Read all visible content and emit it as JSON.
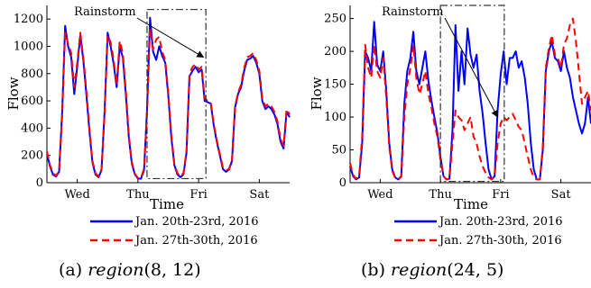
{
  "colors": {
    "series1": "#0000ff",
    "series2": "#ff0000",
    "axis": "#000000",
    "box": "#333333"
  },
  "chart_data": [
    {
      "type": "line",
      "caption_prefix": "(a) ",
      "caption_func": "region",
      "caption_args": "(8, 12)",
      "xlabel": "Time",
      "ylabel": "Flow",
      "xlim": [
        0,
        4
      ],
      "ylim": [
        0,
        1300
      ],
      "yticks": [
        0,
        200,
        400,
        600,
        800,
        1000,
        1200
      ],
      "xtick_labels": [
        "Wed",
        "Thu",
        "Fri",
        "Sat"
      ],
      "xtick_positions": [
        0.5,
        1.5,
        2.5,
        3.5
      ],
      "annotation": {
        "text": "Rainstorm",
        "box_x": [
          1.65,
          2.62
        ],
        "box_y": [
          30,
          1270
        ],
        "arrow_to": [
          2.58,
          920
        ]
      },
      "series": [
        {
          "name": "Jan. 20th-23rd, 2016",
          "style": "solid",
          "x": [
            0,
            0.05,
            0.1,
            0.15,
            0.2,
            0.25,
            0.3,
            0.35,
            0.4,
            0.45,
            0.5,
            0.55,
            0.6,
            0.65,
            0.7,
            0.75,
            0.8,
            0.85,
            0.9,
            0.95,
            1,
            1.05,
            1.1,
            1.15,
            1.2,
            1.25,
            1.3,
            1.35,
            1.4,
            1.45,
            1.5,
            1.55,
            1.6,
            1.65,
            1.7,
            1.75,
            1.8,
            1.85,
            1.9,
            1.95,
            2,
            2.05,
            2.1,
            2.15,
            2.2,
            2.25,
            2.3,
            2.35,
            2.4,
            2.45,
            2.5,
            2.55,
            2.6,
            2.65,
            2.7,
            2.75,
            2.8,
            2.85,
            2.9,
            2.95,
            3,
            3.05,
            3.1,
            3.15,
            3.2,
            3.25,
            3.3,
            3.35,
            3.4,
            3.45,
            3.5,
            3.55,
            3.6,
            3.65,
            3.7,
            3.75,
            3.8,
            3.85,
            3.9,
            3.95,
            4
          ],
          "y": [
            210,
            120,
            60,
            45,
            80,
            500,
            1150,
            1000,
            920,
            650,
            850,
            1080,
            900,
            650,
            380,
            150,
            60,
            40,
            90,
            520,
            1100,
            1000,
            870,
            700,
            1000,
            920,
            650,
            330,
            140,
            60,
            30,
            30,
            90,
            540,
            1210,
            960,
            900,
            1000,
            930,
            880,
            640,
            330,
            130,
            60,
            40,
            60,
            220,
            780,
            820,
            850,
            810,
            830,
            600,
            590,
            580,
            420,
            300,
            200,
            100,
            80,
            95,
            160,
            550,
            650,
            700,
            820,
            900,
            910,
            930,
            880,
            800,
            600,
            540,
            560,
            540,
            500,
            430,
            300,
            250,
            520,
            480
          ]
        },
        {
          "name": "Jan. 27th-30th, 2016",
          "style": "dashed",
          "x": [
            0,
            0.05,
            0.1,
            0.15,
            0.2,
            0.25,
            0.3,
            0.35,
            0.4,
            0.45,
            0.5,
            0.55,
            0.6,
            0.65,
            0.7,
            0.75,
            0.8,
            0.85,
            0.9,
            0.95,
            1,
            1.05,
            1.1,
            1.15,
            1.2,
            1.25,
            1.3,
            1.35,
            1.4,
            1.45,
            1.5,
            1.55,
            1.6,
            1.65,
            1.7,
            1.75,
            1.8,
            1.85,
            1.9,
            1.95,
            2,
            2.05,
            2.1,
            2.15,
            2.2,
            2.25,
            2.3,
            2.35,
            2.4,
            2.45,
            2.5,
            2.55,
            2.6,
            2.65,
            2.7,
            2.75,
            2.8,
            2.85,
            2.9,
            2.95,
            3,
            3.05,
            3.1,
            3.15,
            3.2,
            3.25,
            3.3,
            3.35,
            3.4,
            3.45,
            3.5,
            3.55,
            3.6,
            3.65,
            3.7,
            3.75,
            3.8,
            3.85,
            3.9,
            3.95,
            4
          ],
          "y": [
            230,
            130,
            70,
            50,
            90,
            480,
            1100,
            1020,
            950,
            700,
            880,
            1100,
            920,
            680,
            400,
            160,
            70,
            45,
            100,
            500,
            1080,
            1030,
            900,
            720,
            1040,
            950,
            680,
            350,
            150,
            65,
            35,
            35,
            100,
            520,
            1130,
            980,
            1050,
            1070,
            960,
            900,
            660,
            350,
            140,
            70,
            45,
            70,
            230,
            800,
            850,
            870,
            830,
            850,
            620,
            600,
            590,
            430,
            310,
            210,
            110,
            90,
            100,
            170,
            560,
            660,
            720,
            840,
            920,
            930,
            950,
            900,
            820,
            620,
            560,
            580,
            560,
            520,
            450,
            320,
            270,
            540,
            500
          ]
        }
      ]
    },
    {
      "type": "line",
      "caption_prefix": "(b) ",
      "caption_func": "region",
      "caption_args": "(24, 5)",
      "xlabel": "Time",
      "ylabel": "Flow",
      "xlim": [
        0,
        4
      ],
      "ylim": [
        0,
        270
      ],
      "yticks": [
        0,
        50,
        100,
        150,
        200,
        250
      ],
      "xtick_labels": [
        "Wed",
        "Thu",
        "Fri",
        "Sat"
      ],
      "xtick_positions": [
        0.5,
        1.5,
        2.5,
        3.5
      ],
      "annotation": {
        "text": "Rainstorm",
        "box_x": [
          1.5,
          2.56
        ],
        "box_y": [
          2,
          270
        ],
        "arrow_to": [
          2.45,
          100
        ]
      },
      "series": [
        {
          "name": "Jan. 20th-23rd, 2016",
          "style": "solid",
          "x": [
            0,
            0.05,
            0.1,
            0.15,
            0.2,
            0.25,
            0.3,
            0.35,
            0.4,
            0.45,
            0.5,
            0.55,
            0.6,
            0.65,
            0.7,
            0.75,
            0.8,
            0.85,
            0.9,
            0.95,
            1,
            1.05,
            1.1,
            1.15,
            1.2,
            1.25,
            1.3,
            1.35,
            1.4,
            1.45,
            1.5,
            1.55,
            1.6,
            1.65,
            1.7,
            1.75,
            1.8,
            1.85,
            1.9,
            1.95,
            2,
            2.05,
            2.1,
            2.15,
            2.2,
            2.25,
            2.3,
            2.35,
            2.4,
            2.45,
            2.5,
            2.55,
            2.6,
            2.65,
            2.7,
            2.75,
            2.8,
            2.85,
            2.9,
            2.95,
            3,
            3.05,
            3.1,
            3.15,
            3.2,
            3.25,
            3.3,
            3.35,
            3.4,
            3.45,
            3.5,
            3.55,
            3.6,
            3.65,
            3.7,
            3.75,
            3.8,
            3.85,
            3.9,
            3.95,
            4
          ],
          "y": [
            25,
            10,
            5,
            8,
            60,
            200,
            190,
            170,
            245,
            180,
            170,
            200,
            140,
            60,
            20,
            8,
            5,
            10,
            120,
            170,
            190,
            230,
            170,
            150,
            175,
            200,
            155,
            125,
            100,
            75,
            40,
            10,
            5,
            6,
            80,
            240,
            140,
            200,
            150,
            235,
            195,
            175,
            195,
            140,
            105,
            60,
            20,
            5,
            10,
            110,
            165,
            200,
            150,
            190,
            190,
            200,
            175,
            185,
            160,
            120,
            60,
            20,
            5,
            5,
            50,
            170,
            200,
            215,
            190,
            185,
            170,
            200,
            175,
            160,
            130,
            110,
            90,
            75,
            90,
            130,
            90
          ]
        },
        {
          "name": "Jan. 27th-30th, 2016",
          "style": "dashed",
          "x": [
            0,
            0.05,
            0.1,
            0.15,
            0.2,
            0.25,
            0.3,
            0.35,
            0.4,
            0.45,
            0.5,
            0.55,
            0.6,
            0.65,
            0.7,
            0.75,
            0.8,
            0.85,
            0.9,
            0.95,
            1,
            1.05,
            1.1,
            1.15,
            1.2,
            1.25,
            1.3,
            1.35,
            1.4,
            1.45,
            1.5,
            1.55,
            1.6,
            1.65,
            1.7,
            1.75,
            1.8,
            1.85,
            1.9,
            1.95,
            2,
            2.05,
            2.1,
            2.15,
            2.2,
            2.25,
            2.3,
            2.35,
            2.4,
            2.45,
            2.5,
            2.55,
            2.6,
            2.65,
            2.7,
            2.75,
            2.8,
            2.85,
            2.9,
            2.95,
            3,
            3.05,
            3.1,
            3.15,
            3.2,
            3.25,
            3.3,
            3.35,
            3.4,
            3.45,
            3.5,
            3.55,
            3.6,
            3.65,
            3.7,
            3.75,
            3.8,
            3.85,
            3.9,
            3.95,
            4
          ],
          "y": [
            30,
            12,
            6,
            10,
            70,
            210,
            175,
            160,
            210,
            170,
            160,
            190,
            130,
            55,
            18,
            7,
            5,
            9,
            100,
            150,
            175,
            210,
            160,
            135,
            150,
            170,
            135,
            115,
            90,
            70,
            35,
            10,
            5,
            6,
            60,
            110,
            100,
            95,
            80,
            90,
            100,
            70,
            60,
            40,
            25,
            15,
            8,
            5,
            10,
            60,
            90,
            100,
            95,
            100,
            105,
            95,
            85,
            80,
            60,
            40,
            20,
            8,
            5,
            5,
            55,
            175,
            205,
            225,
            195,
            190,
            175,
            210,
            220,
            240,
            250,
            215,
            170,
            120,
            130,
            140,
            110
          ]
        }
      ]
    }
  ]
}
